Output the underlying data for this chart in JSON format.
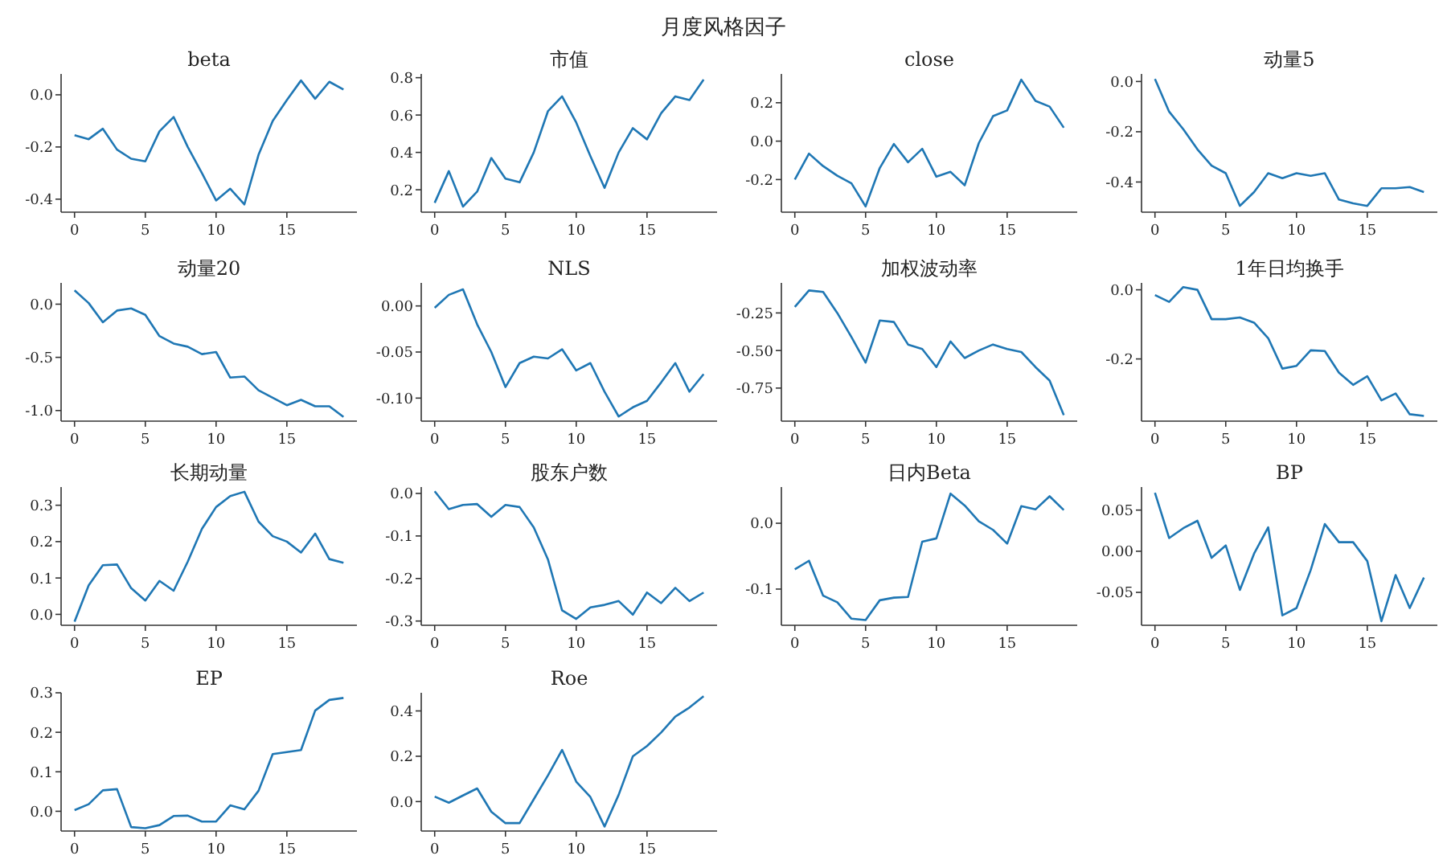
{
  "chart_data": [
    {
      "type": "other",
      "title": "月度风格因子"
    },
    {
      "type": "line",
      "title": "beta",
      "color": "#1f77b4",
      "x": [
        0,
        1,
        2,
        3,
        4,
        5,
        6,
        7,
        8,
        9,
        10,
        11,
        12,
        13,
        14,
        15,
        16,
        17,
        18,
        19
      ],
      "values": [
        -0.155,
        -0.17,
        -0.13,
        -0.21,
        -0.245,
        -0.255,
        -0.14,
        -0.085,
        -0.2,
        -0.3,
        -0.405,
        -0.36,
        -0.42,
        -0.23,
        -0.1,
        -0.02,
        0.055,
        -0.015,
        0.05,
        0.02
      ],
      "xlim": [
        -0.95,
        19.95
      ],
      "xticks": [
        0,
        5,
        10,
        15
      ],
      "ylim": [
        -0.45,
        0.08
      ],
      "yticks": [
        {
          "value": -0.4,
          "label": "-0.4"
        },
        {
          "value": -0.2,
          "label": "-0.2"
        },
        {
          "value": 0,
          "label": "0.0"
        }
      ]
    },
    {
      "type": "line",
      "title": "市值",
      "color": "#1f77b4",
      "x": [
        0,
        1,
        2,
        3,
        4,
        5,
        6,
        7,
        8,
        9,
        10,
        11,
        12,
        13,
        14,
        15,
        16,
        17,
        18,
        19
      ],
      "values": [
        0.13,
        0.3,
        0.11,
        0.19,
        0.37,
        0.26,
        0.24,
        0.4,
        0.62,
        0.7,
        0.56,
        0.38,
        0.21,
        0.4,
        0.53,
        0.47,
        0.61,
        0.7,
        0.68,
        0.79
      ],
      "xlim": [
        -0.95,
        19.95
      ],
      "xticks": [
        0,
        5,
        10,
        15
      ],
      "ylim": [
        0.08,
        0.82
      ],
      "yticks": [
        {
          "value": 0.2,
          "label": "0.2"
        },
        {
          "value": 0.4,
          "label": "0.4"
        },
        {
          "value": 0.6,
          "label": "0.6"
        },
        {
          "value": 0.8,
          "label": "0.8"
        }
      ]
    },
    {
      "type": "line",
      "title": "close",
      "color": "#1f77b4",
      "x": [
        0,
        1,
        2,
        3,
        4,
        5,
        6,
        7,
        8,
        9,
        10,
        11,
        12,
        13,
        14,
        15,
        16,
        17,
        18,
        19
      ],
      "values": [
        -0.2,
        -0.065,
        -0.13,
        -0.18,
        -0.22,
        -0.34,
        -0.14,
        -0.015,
        -0.11,
        -0.04,
        -0.185,
        -0.16,
        -0.23,
        -0.01,
        0.13,
        0.16,
        0.32,
        0.21,
        0.18,
        0.07
      ],
      "xlim": [
        -0.95,
        19.95
      ],
      "xticks": [
        0,
        5,
        10,
        15
      ],
      "ylim": [
        -0.37,
        0.35
      ],
      "yticks": [
        {
          "value": -0.2,
          "label": "-0.2"
        },
        {
          "value": 0,
          "label": "0.0"
        },
        {
          "value": 0.2,
          "label": "0.2"
        }
      ]
    },
    {
      "type": "line",
      "title": "动量5",
      "color": "#1f77b4",
      "x": [
        0,
        1,
        2,
        3,
        4,
        5,
        6,
        7,
        8,
        9,
        10,
        11,
        12,
        13,
        14,
        15,
        16,
        17,
        18,
        19
      ],
      "values": [
        0.01,
        -0.12,
        -0.19,
        -0.27,
        -0.335,
        -0.365,
        -0.495,
        -0.44,
        -0.365,
        -0.385,
        -0.365,
        -0.375,
        -0.365,
        -0.47,
        -0.485,
        -0.495,
        -0.425,
        -0.425,
        -0.42,
        -0.44
      ],
      "xlim": [
        -0.95,
        19.95
      ],
      "xticks": [
        0,
        5,
        10,
        15
      ],
      "ylim": [
        -0.52,
        0.03
      ],
      "yticks": [
        {
          "value": -0.4,
          "label": "-0.4"
        },
        {
          "value": -0.2,
          "label": "-0.2"
        },
        {
          "value": 0,
          "label": "0.0"
        }
      ]
    },
    {
      "type": "line",
      "title": "动量20",
      "color": "#1f77b4",
      "x": [
        0,
        1,
        2,
        3,
        4,
        5,
        6,
        7,
        8,
        9,
        10,
        11,
        12,
        13,
        14,
        15,
        16,
        17,
        18,
        19
      ],
      "values": [
        0.13,
        0.01,
        -0.17,
        -0.06,
        -0.04,
        -0.1,
        -0.3,
        -0.37,
        -0.4,
        -0.47,
        -0.45,
        -0.69,
        -0.68,
        -0.81,
        -0.88,
        -0.95,
        -0.9,
        -0.96,
        -0.96,
        -1.06
      ],
      "xlim": [
        -0.95,
        19.95
      ],
      "xticks": [
        0,
        5,
        10,
        15
      ],
      "ylim": [
        -1.1,
        0.2
      ],
      "yticks": [
        {
          "value": -1,
          "label": "-1.0"
        },
        {
          "value": -0.5,
          "label": "-0.5"
        },
        {
          "value": 0,
          "label": "0.0"
        }
      ]
    },
    {
      "type": "line",
      "title": "NLS",
      "color": "#1f77b4",
      "x": [
        0,
        1,
        2,
        3,
        4,
        5,
        6,
        7,
        8,
        9,
        10,
        11,
        12,
        13,
        14,
        15,
        16,
        17,
        18,
        19
      ],
      "values": [
        -0.002,
        0.012,
        0.018,
        -0.02,
        -0.05,
        -0.088,
        -0.062,
        -0.055,
        -0.057,
        -0.047,
        -0.07,
        -0.062,
        -0.093,
        -0.12,
        -0.11,
        -0.103,
        -0.083,
        -0.062,
        -0.093,
        -0.074
      ],
      "xlim": [
        -0.95,
        19.95
      ],
      "xticks": [
        0,
        5,
        10,
        15
      ],
      "ylim": [
        -0.125,
        0.025
      ],
      "yticks": [
        {
          "value": -0.1,
          "label": "-0.10"
        },
        {
          "value": -0.05,
          "label": "-0.05"
        },
        {
          "value": 0,
          "label": "0.00"
        }
      ]
    },
    {
      "type": "line",
      "title": "加权波动率",
      "color": "#1f77b4",
      "x": [
        0,
        1,
        2,
        3,
        4,
        5,
        6,
        7,
        8,
        9,
        10,
        11,
        12,
        13,
        14,
        15,
        16,
        17,
        18,
        19
      ],
      "values": [
        -0.21,
        -0.1,
        -0.11,
        -0.25,
        -0.41,
        -0.58,
        -0.3,
        -0.31,
        -0.46,
        -0.49,
        -0.61,
        -0.44,
        -0.55,
        -0.5,
        -0.46,
        -0.49,
        -0.51,
        -0.61,
        -0.7,
        -0.93
      ],
      "xlim": [
        -0.95,
        19.95
      ],
      "xticks": [
        0,
        5,
        10,
        15
      ],
      "ylim": [
        -0.97,
        -0.05
      ],
      "yticks": [
        {
          "value": -0.75,
          "label": "-0.75"
        },
        {
          "value": -0.5,
          "label": "-0.50"
        },
        {
          "value": -0.25,
          "label": "-0.25"
        }
      ]
    },
    {
      "type": "line",
      "title": "1年日均换手",
      "color": "#1f77b4",
      "x": [
        0,
        1,
        2,
        3,
        4,
        5,
        6,
        7,
        8,
        9,
        10,
        11,
        12,
        13,
        14,
        15,
        16,
        17,
        18,
        19
      ],
      "values": [
        -0.015,
        -0.035,
        0.008,
        0,
        -0.085,
        -0.085,
        -0.08,
        -0.095,
        -0.14,
        -0.228,
        -0.22,
        -0.175,
        -0.177,
        -0.24,
        -0.275,
        -0.25,
        -0.32,
        -0.3,
        -0.36,
        -0.365
      ],
      "xlim": [
        -0.95,
        19.95
      ],
      "xticks": [
        0,
        5,
        10,
        15
      ],
      "ylim": [
        -0.38,
        0.02
      ],
      "yticks": [
        {
          "value": -0.2,
          "label": "-0.2"
        },
        {
          "value": 0,
          "label": "0.0"
        }
      ]
    },
    {
      "type": "line",
      "title": "长期动量",
      "color": "#1f77b4",
      "x": [
        0,
        1,
        2,
        3,
        4,
        5,
        6,
        7,
        8,
        9,
        10,
        11,
        12,
        13,
        14,
        15,
        16,
        17,
        18,
        19
      ],
      "values": [
        -0.02,
        0.08,
        0.135,
        0.137,
        0.072,
        0.038,
        0.092,
        0.065,
        0.145,
        0.235,
        0.295,
        0.325,
        0.337,
        0.255,
        0.215,
        0.2,
        0.17,
        0.222,
        0.152,
        0.142
      ],
      "xlim": [
        -0.95,
        19.95
      ],
      "xticks": [
        0,
        5,
        10,
        15
      ],
      "ylim": [
        -0.03,
        0.35
      ],
      "yticks": [
        {
          "value": 0,
          "label": "0.0"
        },
        {
          "value": 0.1,
          "label": "0.1"
        },
        {
          "value": 0.2,
          "label": "0.2"
        },
        {
          "value": 0.3,
          "label": "0.3"
        }
      ]
    },
    {
      "type": "line",
      "title": "股东户数",
      "color": "#1f77b4",
      "x": [
        0,
        1,
        2,
        3,
        4,
        5,
        6,
        7,
        8,
        9,
        10,
        11,
        12,
        13,
        14,
        15,
        16,
        17,
        18,
        19
      ],
      "values": [
        0.005,
        -0.037,
        -0.027,
        -0.025,
        -0.055,
        -0.027,
        -0.032,
        -0.08,
        -0.155,
        -0.275,
        -0.295,
        -0.268,
        -0.262,
        -0.253,
        -0.285,
        -0.233,
        -0.258,
        -0.222,
        -0.253,
        -0.233
      ],
      "xlim": [
        -0.95,
        19.95
      ],
      "xticks": [
        0,
        5,
        10,
        15
      ],
      "ylim": [
        -0.31,
        0.015
      ],
      "yticks": [
        {
          "value": -0.3,
          "label": "-0.3"
        },
        {
          "value": -0.2,
          "label": "-0.2"
        },
        {
          "value": -0.1,
          "label": "-0.1"
        },
        {
          "value": 0,
          "label": "0.0"
        }
      ]
    },
    {
      "type": "line",
      "title": "日内Beta",
      "color": "#1f77b4",
      "x": [
        0,
        1,
        2,
        3,
        4,
        5,
        6,
        7,
        8,
        9,
        10,
        11,
        12,
        13,
        14,
        15,
        16,
        17,
        18,
        19
      ],
      "values": [
        -0.07,
        -0.057,
        -0.11,
        -0.12,
        -0.145,
        -0.147,
        -0.117,
        -0.113,
        -0.112,
        -0.028,
        -0.023,
        0.045,
        0.027,
        0.003,
        -0.01,
        -0.031,
        0.026,
        0.021,
        0.041,
        0.02
      ],
      "xlim": [
        -0.95,
        19.95
      ],
      "xticks": [
        0,
        5,
        10,
        15
      ],
      "ylim": [
        -0.155,
        0.055
      ],
      "yticks": [
        {
          "value": -0.1,
          "label": "-0.1"
        },
        {
          "value": 0,
          "label": "0.0"
        }
      ]
    },
    {
      "type": "line",
      "title": "BP",
      "color": "#1f77b4",
      "x": [
        0,
        1,
        2,
        3,
        4,
        5,
        6,
        7,
        8,
        9,
        10,
        11,
        12,
        13,
        14,
        15,
        16,
        17,
        18,
        19
      ],
      "values": [
        0.071,
        0.016,
        0.028,
        0.037,
        -0.008,
        0.007,
        -0.047,
        -0.003,
        0.029,
        -0.078,
        -0.069,
        -0.023,
        0.033,
        0.011,
        0.011,
        -0.012,
        -0.085,
        -0.029,
        -0.069,
        -0.032
      ],
      "xlim": [
        -0.95,
        19.95
      ],
      "xticks": [
        0,
        5,
        10,
        15
      ],
      "ylim": [
        -0.09,
        0.078
      ],
      "yticks": [
        {
          "value": -0.05,
          "label": "-0.05"
        },
        {
          "value": 0,
          "label": "0.00"
        },
        {
          "value": 0.05,
          "label": "0.05"
        }
      ]
    },
    {
      "type": "line",
      "title": "EP",
      "color": "#1f77b4",
      "x": [
        0,
        1,
        2,
        3,
        4,
        5,
        6,
        7,
        8,
        9,
        10,
        11,
        12,
        13,
        14,
        15,
        16,
        17,
        18,
        19
      ],
      "values": [
        0.003,
        0.018,
        0.053,
        0.056,
        -0.04,
        -0.043,
        -0.035,
        -0.012,
        -0.011,
        -0.026,
        -0.026,
        0.015,
        0.005,
        0.052,
        0.145,
        0.15,
        0.155,
        0.255,
        0.282,
        0.287
      ],
      "xlim": [
        -0.95,
        19.95
      ],
      "xticks": [
        0,
        5,
        10,
        15
      ],
      "ylim": [
        -0.05,
        0.3
      ],
      "yticks": [
        {
          "value": 0,
          "label": "0.0"
        },
        {
          "value": 0.1,
          "label": "0.1"
        },
        {
          "value": 0.2,
          "label": "0.2"
        },
        {
          "value": 0.3,
          "label": "0.3"
        }
      ]
    },
    {
      "type": "line",
      "title": "Roe",
      "color": "#1f77b4",
      "x": [
        0,
        1,
        2,
        3,
        4,
        5,
        6,
        7,
        8,
        9,
        10,
        11,
        12,
        13,
        14,
        15,
        16,
        17,
        18,
        19
      ],
      "values": [
        0.022,
        -0.005,
        0.027,
        0.058,
        -0.045,
        -0.095,
        -0.095,
        0.01,
        0.115,
        0.228,
        0.088,
        0.02,
        -0.11,
        0.03,
        0.2,
        0.245,
        0.305,
        0.375,
        0.415,
        0.465
      ],
      "xlim": [
        -0.95,
        19.95
      ],
      "xticks": [
        0,
        5,
        10,
        15
      ],
      "ylim": [
        -0.13,
        0.48
      ],
      "yticks": [
        {
          "value": 0,
          "label": "0.0"
        },
        {
          "value": 0.2,
          "label": "0.2"
        },
        {
          "value": 0.4,
          "label": "0.4"
        }
      ]
    }
  ]
}
